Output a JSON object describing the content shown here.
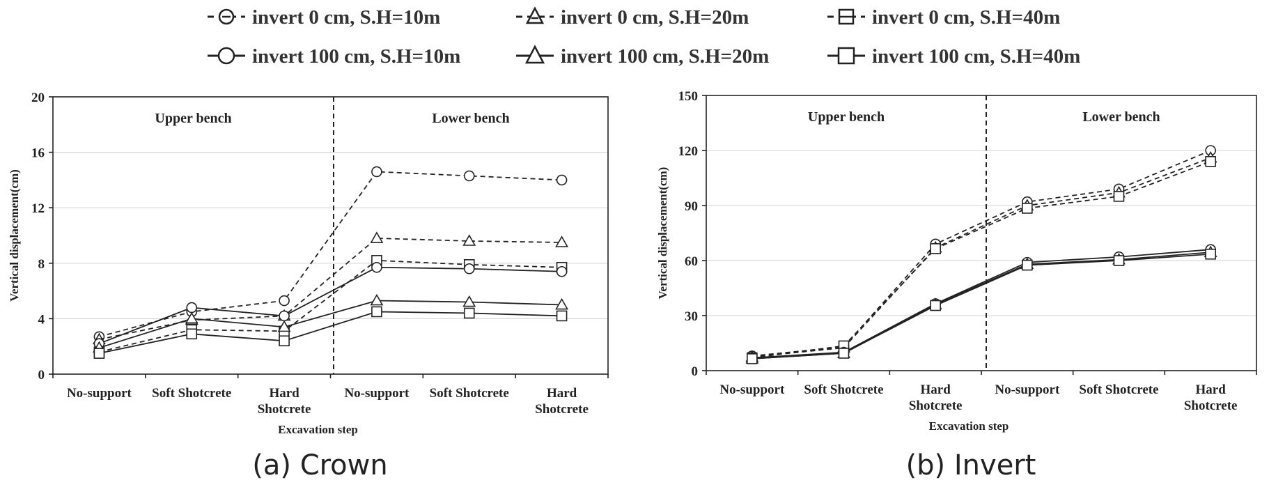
{
  "legend": [
    {
      "label": "invert 0 cm, S.H=10m",
      "marker": "circle",
      "dash": true
    },
    {
      "label": "invert 0 cm, S.H=20m",
      "marker": "triangle",
      "dash": true
    },
    {
      "label": "invert 0 cm, S.H=40m",
      "marker": "square",
      "dash": true
    },
    {
      "label": "invert 100 cm, S.H=10m",
      "marker": "circle",
      "dash": false
    },
    {
      "label": "invert 100 cm, S.H=20m",
      "marker": "triangle",
      "dash": false
    },
    {
      "label": "invert 100 cm, S.H=40m",
      "marker": "square",
      "dash": false
    }
  ],
  "chart_data": [
    {
      "type": "line",
      "caption": "(a) Crown",
      "xlabel": "Excavation step",
      "ylabel": "Vertical displacement(cm)",
      "categories": [
        "No-support",
        "Soft Shotcrete",
        "Hard Shotcrete",
        "No-support",
        "Soft Shotcrete",
        "Hard Shotcrete"
      ],
      "regions": [
        "Upper bench",
        "Lower bench"
      ],
      "ylim": [
        0,
        20
      ],
      "yticks": [
        0,
        4,
        8,
        12,
        16,
        20
      ],
      "series": [
        {
          "name": "invert 0 cm, S.H=10m",
          "values": [
            2.7,
            4.5,
            5.3,
            14.6,
            14.3,
            14.0
          ]
        },
        {
          "name": "invert 0 cm, S.H=20m",
          "values": [
            2.5,
            3.9,
            4.2,
            9.8,
            9.6,
            9.5
          ]
        },
        {
          "name": "invert 0 cm, S.H=40m",
          "values": [
            1.6,
            3.2,
            3.1,
            8.2,
            7.9,
            7.7
          ]
        },
        {
          "name": "invert 100 cm, S.H=10m",
          "values": [
            2.2,
            4.8,
            4.2,
            7.7,
            7.6,
            7.4
          ]
        },
        {
          "name": "invert 100 cm, S.H=20m",
          "values": [
            1.9,
            4.0,
            3.4,
            5.3,
            5.2,
            5.0
          ]
        },
        {
          "name": "invert 100 cm, S.H=40m",
          "values": [
            1.5,
            2.9,
            2.4,
            4.5,
            4.4,
            4.2
          ]
        }
      ],
      "grid": true
    },
    {
      "type": "line",
      "caption": "(b) Invert",
      "xlabel": "Excavation step",
      "ylabel": "Vertical displacement(cm)",
      "categories": [
        "No-support",
        "Soft Shotcrete",
        "Hard Shotcrete",
        "No-support",
        "Soft Shotcrete",
        "Hard Shotcrete"
      ],
      "regions": [
        "Upper bench",
        "Lower bench"
      ],
      "ylim": [
        0,
        150
      ],
      "yticks": [
        0,
        30,
        60,
        90,
        120,
        150
      ],
      "series": [
        {
          "name": "invert 0 cm, S.H=10m",
          "values": [
            8,
            13,
            69,
            92,
            99,
            120
          ]
        },
        {
          "name": "invert 0 cm, S.H=20m",
          "values": [
            7.5,
            12.5,
            67,
            90,
            97,
            116
          ]
        },
        {
          "name": "invert 0 cm, S.H=40m",
          "values": [
            7,
            13.5,
            66.5,
            88.5,
            95,
            114
          ]
        },
        {
          "name": "invert 100 cm, S.H=10m",
          "values": [
            7,
            10,
            36.5,
            59,
            62,
            66
          ]
        },
        {
          "name": "invert 100 cm, S.H=20m",
          "values": [
            6.5,
            9.5,
            36,
            58,
            60.5,
            64.5
          ]
        },
        {
          "name": "invert 100 cm, S.H=40m",
          "values": [
            6.5,
            9.5,
            35.5,
            57.5,
            60,
            63.5
          ]
        }
      ],
      "grid": true
    }
  ]
}
